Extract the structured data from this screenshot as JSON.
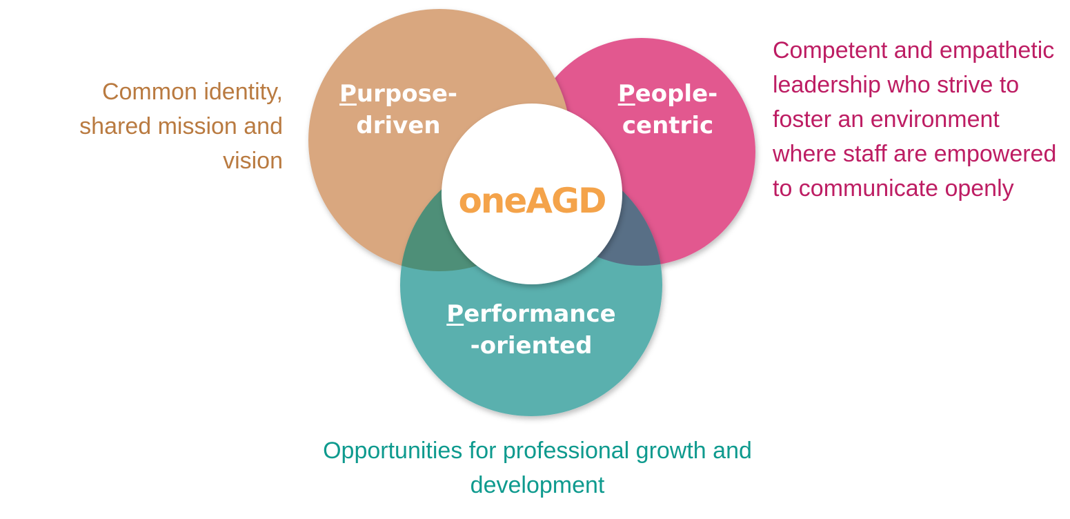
{
  "diagram": {
    "colors": {
      "purpose": "#D9A77F",
      "people": "#E2588F",
      "performance": "#5AB0AE",
      "overlap_purpose_performance": "#4E8F78",
      "overlap_people_performance": "#586F86",
      "center": "#FFFFFF",
      "logo": "#F4A34A",
      "purpose_text": "#B97A40",
      "people_text": "#BD1D63",
      "performance_text": "#0E9A8E"
    },
    "center_logo": "oneAGD",
    "circles": [
      {
        "id": "purpose",
        "initial": "P",
        "rest_line1": "urpose-",
        "line2": "driven",
        "description": "Common identity, shared mission and vision"
      },
      {
        "id": "people",
        "initial": "P",
        "rest_line1": "eople-",
        "line2": "centric",
        "description": "Competent and empathetic leadership who strive to foster an environment where staff are empowered to communicate openly"
      },
      {
        "id": "performance",
        "initial": "P",
        "rest_line1": "erformance",
        "line2": "-oriented",
        "description": "Opportunities for professional growth and development"
      }
    ]
  }
}
